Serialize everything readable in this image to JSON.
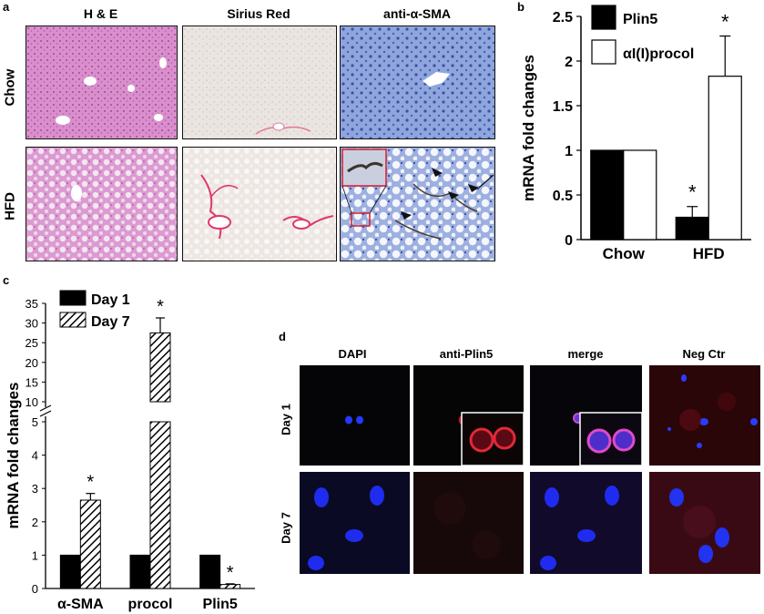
{
  "panel_a": {
    "letter": "a",
    "columns": [
      "H & E",
      "Sirius Red",
      "anti-α-SMA"
    ],
    "rows": [
      "Chow",
      "HFD"
    ]
  },
  "panel_b": {
    "letter": "b"
  },
  "panel_c": {
    "letter": "c"
  },
  "panel_d": {
    "letter": "d",
    "columns": [
      "DAPI",
      "anti-Plin5",
      "merge",
      "Neg Ctr"
    ],
    "rows": [
      "Day 1",
      "Day 7"
    ]
  },
  "colors": {
    "he_pink": "#d78ac9",
    "sirius_bg": "#e9e4e0",
    "sirius_red": "#e03a6b",
    "dab_blue": "#7d9ad6",
    "fluo_black": "#050505",
    "dapi_blue": "#1a2cff",
    "plin5_red": "#c01a2a"
  },
  "chart_data": [
    {
      "panel": "b",
      "type": "bar",
      "title": "",
      "xlabel": "",
      "ylabel": "mRNA fold changes",
      "categories": [
        "Chow",
        "HFD"
      ],
      "ylim": [
        0,
        2.5
      ],
      "yticks": [
        "0",
        "0.5",
        "1",
        "1.5",
        "2",
        "2.5"
      ],
      "legend_position": "top-left",
      "series": [
        {
          "name": "Plin5",
          "fill": "solid-black",
          "values": [
            1.0,
            0.25
          ],
          "error": [
            0,
            0.12
          ]
        },
        {
          "name": "αI(I)procol",
          "fill": "white",
          "values": [
            1.0,
            1.83
          ],
          "error": [
            0,
            0.45
          ]
        }
      ],
      "annotations": [
        {
          "category": "HFD",
          "series": "Plin5",
          "text": "*"
        },
        {
          "category": "HFD",
          "series": "αI(I)procol",
          "text": "*"
        }
      ]
    },
    {
      "panel": "c",
      "type": "bar",
      "title": "",
      "xlabel": "",
      "ylabel": "mRNA fold changes",
      "categories": [
        "α-SMA",
        "procol",
        "Plin5"
      ],
      "broken_axis": true,
      "ylim_lower": [
        0,
        5
      ],
      "ylim_upper": [
        10,
        35
      ],
      "yticks_lower": [
        "0",
        "1",
        "2",
        "3",
        "4",
        "5"
      ],
      "yticks_upper": [
        "10",
        "15",
        "20",
        "25",
        "30",
        "35"
      ],
      "legend_position": "top-left",
      "series": [
        {
          "name": "Day 1",
          "fill": "solid-black",
          "values": [
            1.0,
            1.0,
            1.0
          ],
          "error": [
            0,
            0,
            0
          ]
        },
        {
          "name": "Day 7",
          "fill": "hatched",
          "values": [
            2.65,
            27.5,
            0.12
          ],
          "error": [
            0.2,
            3.8,
            0.02
          ]
        }
      ],
      "annotations": [
        {
          "category": "α-SMA",
          "series": "Day 7",
          "text": "*"
        },
        {
          "category": "procol",
          "series": "Day 7",
          "text": "*"
        },
        {
          "category": "Plin5",
          "series": "Day 7",
          "text": "*"
        }
      ]
    }
  ]
}
